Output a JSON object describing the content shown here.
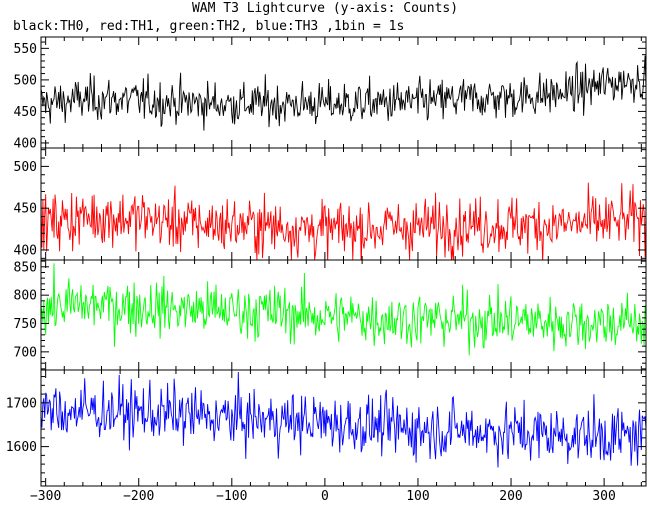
{
  "chart_data": {
    "type": "line",
    "title": "WAM T3 Lightcurve (y-axis: Counts)",
    "subtitle": "black:TH0, red:TH1, green:TH2, blue:TH3 ,1bin = 1s",
    "xlim": [
      -305,
      345
    ],
    "x_ticks": [
      -300,
      -200,
      -100,
      0,
      100,
      200,
      300
    ],
    "x_tick_labels": [
      "−300",
      "−200",
      "−100",
      "0",
      "100",
      "200",
      "300"
    ],
    "panels": [
      {
        "series": "TH0",
        "color": "#000000",
        "ylim": [
          392,
          568
        ],
        "y_ticks": [
          400,
          450,
          500,
          550
        ],
        "trend": [
          [
            -300,
            463
          ],
          [
            -250,
            470
          ],
          [
            -200,
            468
          ],
          [
            -150,
            464
          ],
          [
            -100,
            462
          ],
          [
            -50,
            462
          ],
          [
            0,
            462
          ],
          [
            50,
            463
          ],
          [
            100,
            465
          ],
          [
            150,
            470
          ],
          [
            200,
            472
          ],
          [
            250,
            478
          ],
          [
            300,
            493
          ],
          [
            340,
            502
          ]
        ],
        "noise_sd": 17
      },
      {
        "series": "TH1",
        "color": "#ff0000",
        "ylim": [
          388,
          522
        ],
        "y_ticks": [
          400,
          450,
          500
        ],
        "trend": [
          [
            -300,
            433
          ],
          [
            -250,
            440
          ],
          [
            -200,
            438
          ],
          [
            -150,
            432
          ],
          [
            -100,
            430
          ],
          [
            -50,
            428
          ],
          [
            0,
            424
          ],
          [
            50,
            426
          ],
          [
            100,
            428
          ],
          [
            150,
            430
          ],
          [
            200,
            430
          ],
          [
            250,
            430
          ],
          [
            300,
            433
          ],
          [
            340,
            437
          ]
        ],
        "noise_sd": 17
      },
      {
        "series": "TH2",
        "color": "#00ff00",
        "ylim": [
          668,
          862
        ],
        "y_ticks": [
          700,
          750,
          800,
          850
        ],
        "trend": [
          [
            -300,
            780
          ],
          [
            -250,
            783
          ],
          [
            -200,
            780
          ],
          [
            -150,
            775
          ],
          [
            -100,
            773
          ],
          [
            -50,
            770
          ],
          [
            0,
            763
          ],
          [
            50,
            760
          ],
          [
            100,
            757
          ],
          [
            150,
            757
          ],
          [
            200,
            755
          ],
          [
            250,
            752
          ],
          [
            300,
            752
          ],
          [
            340,
            752
          ]
        ],
        "noise_sd": 24
      },
      {
        "series": "TH3",
        "color": "#0000ff",
        "ylim": [
          1510,
          1775
        ],
        "y_ticks": [
          1600,
          1700
        ],
        "trend": [
          [
            -300,
            1680
          ],
          [
            -250,
            1682
          ],
          [
            -200,
            1678
          ],
          [
            -150,
            1672
          ],
          [
            -100,
            1665
          ],
          [
            -50,
            1660
          ],
          [
            0,
            1655
          ],
          [
            50,
            1648
          ],
          [
            100,
            1640
          ],
          [
            150,
            1638
          ],
          [
            200,
            1632
          ],
          [
            250,
            1628
          ],
          [
            300,
            1625
          ],
          [
            340,
            1622
          ]
        ],
        "noise_sd": 33
      }
    ]
  }
}
